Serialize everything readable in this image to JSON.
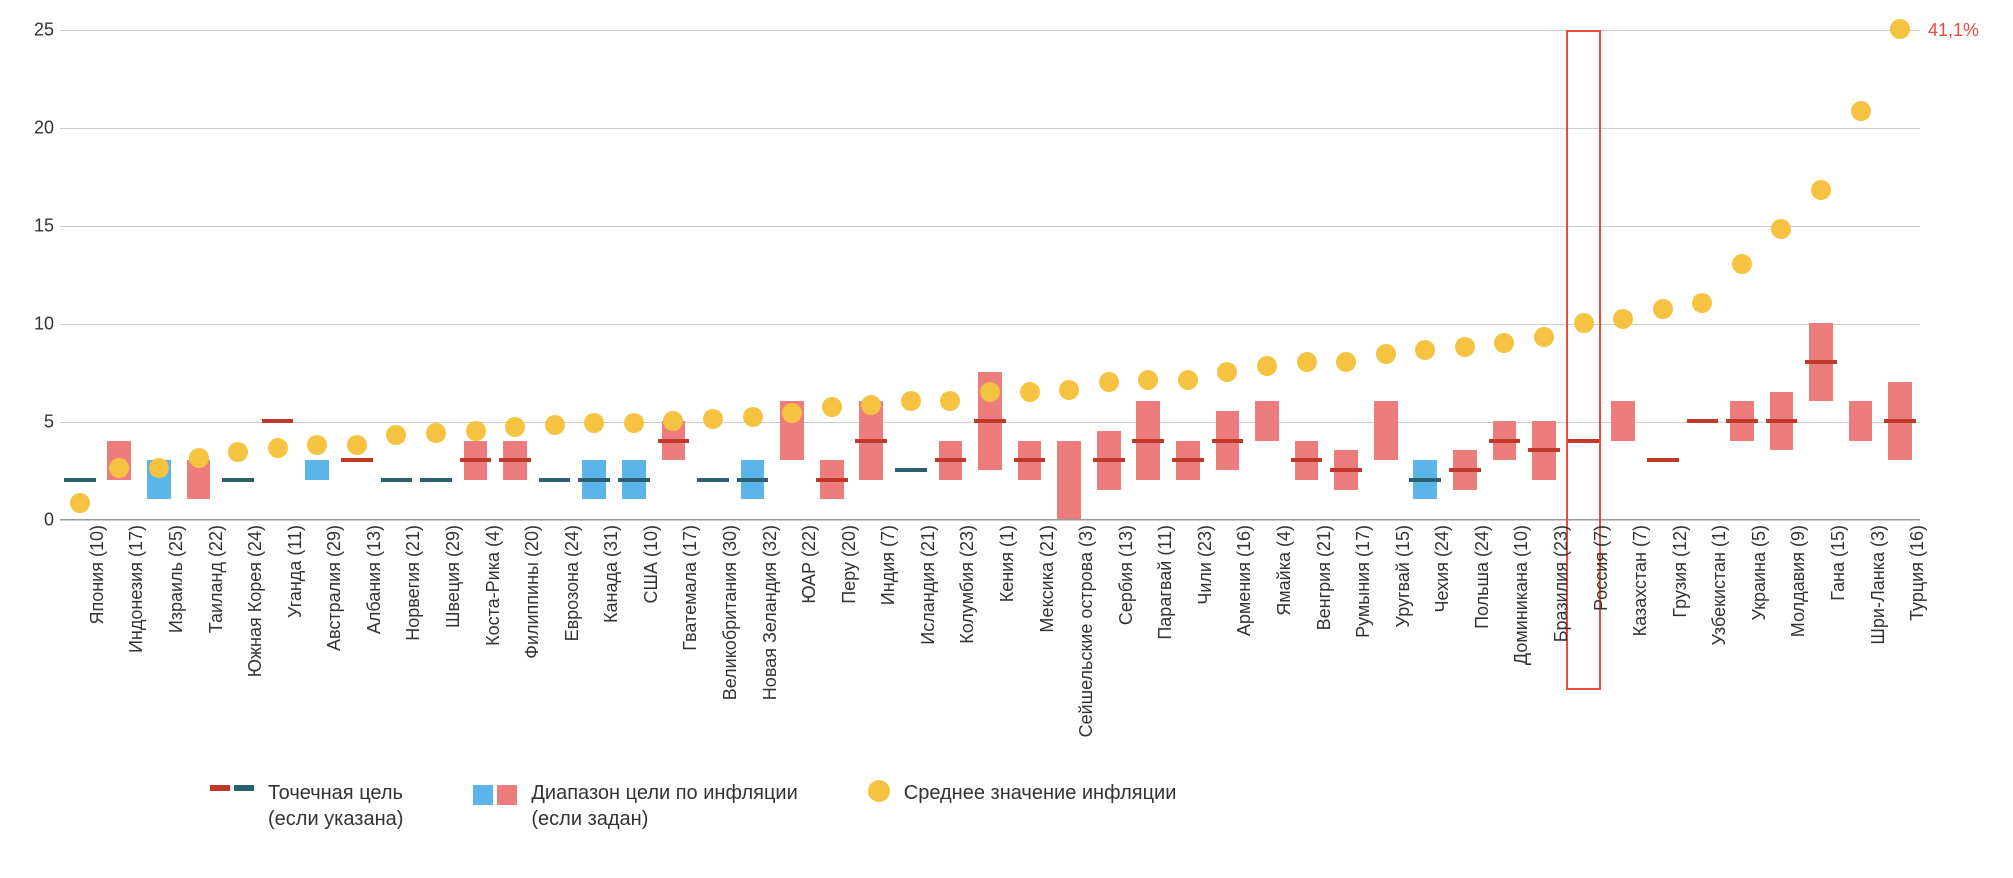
{
  "chart": {
    "type": "mixed-bar-point-scatter",
    "ylim": [
      0,
      25
    ],
    "ytick_step": 5,
    "yticks": [
      0,
      5,
      10,
      15,
      20,
      25
    ],
    "background_color": "#ffffff",
    "grid_color": "#cccccc",
    "colors": {
      "range_red": "#ed7d7d",
      "range_blue": "#5bb5e8",
      "point_red": "#c0392b",
      "point_teal": "#2c5f6f",
      "avg_dot": "#f5c242",
      "highlight_border": "#e74c3c",
      "annotation_text": "#e74c3c"
    },
    "annotation": {
      "text": "41,1%",
      "country_index": 47,
      "value": 25
    },
    "highlight_country_index": 38,
    "countries": [
      {
        "label": "Япония (10)",
        "point": 2.0,
        "point_color": "teal",
        "range": null,
        "avg": 0.8
      },
      {
        "label": "Индонезия (17)",
        "point": null,
        "range": [
          2,
          4
        ],
        "range_color": "red",
        "avg": 2.6
      },
      {
        "label": "Израиль (25)",
        "point": null,
        "range": [
          1,
          3
        ],
        "range_color": "blue",
        "avg": 2.6
      },
      {
        "label": "Таиланд (22)",
        "point": null,
        "range": [
          1,
          3
        ],
        "range_color": "red",
        "avg": 3.1
      },
      {
        "label": "Южная Корея (24)",
        "point": 2.0,
        "point_color": "teal",
        "range": null,
        "avg": 3.4
      },
      {
        "label": "Уганда (11)",
        "point": 5.0,
        "point_color": "red",
        "range": null,
        "avg": 3.6
      },
      {
        "label": "Австралия (29)",
        "point": null,
        "range": [
          2,
          3
        ],
        "range_color": "blue",
        "avg": 3.8
      },
      {
        "label": "Албания (13)",
        "point": 3.0,
        "point_color": "red",
        "range": null,
        "avg": 3.8
      },
      {
        "label": "Норвегия (21)",
        "point": 2.0,
        "point_color": "teal",
        "range": null,
        "avg": 4.3
      },
      {
        "label": "Швеция (29)",
        "point": 2.0,
        "point_color": "teal",
        "range": null,
        "avg": 4.4
      },
      {
        "label": "Коста-Рика (4)",
        "point": 3.0,
        "point_color": "red",
        "range": [
          2,
          4
        ],
        "range_color": "red",
        "avg": 4.5
      },
      {
        "label": "Филиппины (20)",
        "point": 3.0,
        "point_color": "red",
        "range": [
          2,
          4
        ],
        "range_color": "red",
        "avg": 4.7
      },
      {
        "label": "Еврозона (24)",
        "point": 2.0,
        "point_color": "teal",
        "range": null,
        "avg": 4.8
      },
      {
        "label": "Канада (31)",
        "point": 2.0,
        "point_color": "teal",
        "range": [
          1,
          3
        ],
        "range_color": "blue",
        "avg": 4.9
      },
      {
        "label": "США (10)",
        "point": 2.0,
        "point_color": "teal",
        "range": [
          1,
          3
        ],
        "range_color": "blue",
        "avg": 4.9
      },
      {
        "label": "Гватемала (17)",
        "point": 4.0,
        "point_color": "red",
        "range": [
          3,
          5
        ],
        "range_color": "red",
        "avg": 5.0
      },
      {
        "label": "Великобритания (30)",
        "point": 2.0,
        "point_color": "teal",
        "range": null,
        "avg": 5.1
      },
      {
        "label": "Новая Зеландия (32)",
        "point": 2.0,
        "point_color": "teal",
        "range": [
          1,
          3
        ],
        "range_color": "blue",
        "avg": 5.2
      },
      {
        "label": "ЮАР (22)",
        "point": null,
        "range": [
          3,
          6
        ],
        "range_color": "red",
        "avg": 5.4
      },
      {
        "label": "Перу (20)",
        "point": 2.0,
        "point_color": "red",
        "range": [
          1,
          3
        ],
        "range_color": "red",
        "avg": 5.7
      },
      {
        "label": "Индия (7)",
        "point": 4.0,
        "point_color": "red",
        "range": [
          2,
          6
        ],
        "range_color": "red",
        "avg": 5.8
      },
      {
        "label": "Исландия (21)",
        "point": 2.5,
        "point_color": "teal",
        "range": null,
        "avg": 6.0
      },
      {
        "label": "Колумбия (23)",
        "point": 3.0,
        "point_color": "red",
        "range": [
          2,
          4
        ],
        "range_color": "red",
        "avg": 6.0
      },
      {
        "label": "Кения (1)",
        "point": 5.0,
        "point_color": "red",
        "range": [
          2.5,
          7.5
        ],
        "range_color": "red",
        "avg": 6.5
      },
      {
        "label": "Мексика (21)",
        "point": 3.0,
        "point_color": "red",
        "range": [
          2,
          4
        ],
        "range_color": "red",
        "avg": 6.5
      },
      {
        "label": "Сейшельские острова (3)",
        "point": null,
        "range": [
          0,
          4
        ],
        "range_color": "red",
        "avg": 6.6
      },
      {
        "label": "Сербия (13)",
        "point": 3.0,
        "point_color": "red",
        "range": [
          1.5,
          4.5
        ],
        "range_color": "red",
        "avg": 7.0
      },
      {
        "label": "Парагвай (11)",
        "point": 4.0,
        "point_color": "red",
        "range": [
          2,
          6
        ],
        "range_color": "red",
        "avg": 7.1
      },
      {
        "label": "Чили (23)",
        "point": 3.0,
        "point_color": "red",
        "range": [
          2,
          4
        ],
        "range_color": "red",
        "avg": 7.1
      },
      {
        "label": "Армения (16)",
        "point": 4.0,
        "point_color": "red",
        "range": [
          2.5,
          5.5
        ],
        "range_color": "red",
        "avg": 7.5
      },
      {
        "label": "Ямайка (4)",
        "point": null,
        "range": [
          4,
          6
        ],
        "range_color": "red",
        "avg": 7.8
      },
      {
        "label": "Венгрия (21)",
        "point": 3.0,
        "point_color": "red",
        "range": [
          2,
          4
        ],
        "range_color": "red",
        "avg": 8.0
      },
      {
        "label": "Румыния (17)",
        "point": 2.5,
        "point_color": "red",
        "range": [
          1.5,
          3.5
        ],
        "range_color": "red",
        "avg": 8.0
      },
      {
        "label": "Уругвай (15)",
        "point": null,
        "range": [
          3,
          6
        ],
        "range_color": "red",
        "avg": 8.4
      },
      {
        "label": "Чехия (24)",
        "point": 2.0,
        "point_color": "teal",
        "range": [
          1,
          3
        ],
        "range_color": "blue",
        "avg": 8.6
      },
      {
        "label": "Польша (24)",
        "point": 2.5,
        "point_color": "red",
        "range": [
          1.5,
          3.5
        ],
        "range_color": "red",
        "avg": 8.8
      },
      {
        "label": "Доминикана (10)",
        "point": 4.0,
        "point_color": "red",
        "range": [
          3,
          5
        ],
        "range_color": "red",
        "avg": 9.0
      },
      {
        "label": "Бразилия (23)",
        "point": 3.5,
        "point_color": "red",
        "range": [
          2,
          5
        ],
        "range_color": "red",
        "avg": 9.3
      },
      {
        "label": "Россия (7)",
        "point": 4.0,
        "point_color": "red",
        "range": null,
        "avg": 10.0
      },
      {
        "label": "Казахстан (7)",
        "point": null,
        "range": [
          4,
          6
        ],
        "range_color": "red",
        "avg": 10.2
      },
      {
        "label": "Грузия (12)",
        "point": 3.0,
        "point_color": "red",
        "range": null,
        "avg": 10.7
      },
      {
        "label": "Узбекистан (1)",
        "point": 5.0,
        "point_color": "red",
        "range": null,
        "avg": 11.0
      },
      {
        "label": "Украина (5)",
        "point": 5.0,
        "point_color": "red",
        "range": [
          4,
          6
        ],
        "range_color": "red",
        "avg": 13.0
      },
      {
        "label": "Молдавия (9)",
        "point": 5.0,
        "point_color": "red",
        "range": [
          3.5,
          6.5
        ],
        "range_color": "red",
        "avg": 14.8
      },
      {
        "label": "Гана (15)",
        "point": 8.0,
        "point_color": "red",
        "range": [
          6,
          10
        ],
        "range_color": "red",
        "avg": 16.8
      },
      {
        "label": "Шри-Ланка (3)",
        "point": null,
        "range": [
          4,
          6
        ],
        "range_color": "red",
        "avg": 20.8
      },
      {
        "label": "Турция (16)",
        "point": 5.0,
        "point_color": "red",
        "range": [
          3,
          7
        ],
        "range_color": "red",
        "avg": 25.0
      }
    ]
  },
  "legend": {
    "item1": {
      "label_line1": "Точечная цель",
      "label_line2": "(если указана)"
    },
    "item2": {
      "label_line1": "Диапазон цели по инфляции",
      "label_line2": "(если задан)"
    },
    "item3": {
      "label": "Среднее значение инфляции"
    }
  }
}
